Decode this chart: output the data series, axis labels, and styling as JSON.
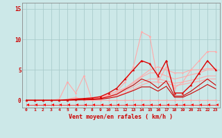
{
  "xlabel": "Vent moyen/en rafales ( km/h )",
  "x_ticks": [
    0,
    1,
    2,
    3,
    4,
    5,
    6,
    7,
    8,
    9,
    10,
    11,
    12,
    13,
    14,
    15,
    16,
    17,
    18,
    19,
    20,
    21,
    22,
    23
  ],
  "xlim": [
    -0.5,
    23.5
  ],
  "ylim": [
    -1.2,
    16
  ],
  "y_ticks": [
    0,
    5,
    10,
    15
  ],
  "background_color": "#cce8e8",
  "grid_color": "#aacccc",
  "series": [
    {
      "x": [
        0,
        1,
        2,
        3,
        4,
        5,
        6,
        7,
        8,
        9,
        10,
        11,
        12,
        13,
        14,
        15,
        16,
        17,
        18,
        19,
        20,
        21,
        22,
        23
      ],
      "y": [
        0,
        0,
        0,
        0,
        0,
        0.2,
        0.5,
        0,
        0,
        0,
        1.0,
        1.5,
        3.0,
        5.5,
        11.2,
        10.5,
        3.0,
        5.5,
        2.0,
        3.0,
        5.0,
        6.5,
        8.0,
        8.0
      ],
      "color": "#ffaaaa",
      "lw": 0.8,
      "marker": "o",
      "ms": 2.0
    },
    {
      "x": [
        0,
        1,
        2,
        3,
        4,
        5,
        6,
        7,
        8,
        9,
        10,
        11,
        12,
        13,
        14,
        15,
        16,
        17,
        18,
        19,
        20,
        21,
        22,
        23
      ],
      "y": [
        0,
        0,
        0,
        0,
        0.2,
        3.0,
        1.2,
        4.0,
        0,
        0,
        0,
        0,
        0,
        0,
        0,
        0,
        0,
        0,
        0,
        0,
        0,
        0,
        0,
        0
      ],
      "color": "#ffaaaa",
      "lw": 0.8,
      "marker": "o",
      "ms": 2.0
    },
    {
      "x": [
        0,
        1,
        2,
        3,
        4,
        5,
        6,
        7,
        8,
        9,
        10,
        11,
        12,
        13,
        14,
        15,
        16,
        17,
        18,
        19,
        20,
        21,
        22,
        23
      ],
      "y": [
        0,
        0,
        0,
        0,
        0,
        0.1,
        0.2,
        0.3,
        0.3,
        0.5,
        1.0,
        1.5,
        2.0,
        3.0,
        4.0,
        5.0,
        5.5,
        5.0,
        4.5,
        4.5,
        5.0,
        5.0,
        5.2,
        5.2
      ],
      "color": "#ffaaaa",
      "lw": 0.8,
      "marker": "o",
      "ms": 1.5
    },
    {
      "x": [
        0,
        1,
        2,
        3,
        4,
        5,
        6,
        7,
        8,
        9,
        10,
        11,
        12,
        13,
        14,
        15,
        16,
        17,
        18,
        19,
        20,
        21,
        22,
        23
      ],
      "y": [
        0,
        0,
        0,
        0,
        0,
        0.08,
        0.15,
        0.2,
        0.25,
        0.4,
        0.8,
        1.2,
        2.0,
        2.8,
        3.8,
        4.5,
        4.5,
        4.0,
        3.5,
        3.8,
        4.2,
        4.5,
        5.0,
        5.0
      ],
      "color": "#ffaaaa",
      "lw": 0.8,
      "marker": null,
      "ms": 0
    },
    {
      "x": [
        0,
        1,
        2,
        3,
        4,
        5,
        6,
        7,
        8,
        9,
        10,
        11,
        12,
        13,
        14,
        15,
        16,
        17,
        18,
        19,
        20,
        21,
        22,
        23
      ],
      "y": [
        0,
        0,
        0,
        0,
        0,
        0.06,
        0.12,
        0.18,
        0.22,
        0.35,
        0.65,
        1.0,
        1.6,
        2.2,
        3.0,
        3.5,
        3.5,
        3.2,
        2.8,
        3.0,
        3.3,
        3.6,
        4.0,
        4.0
      ],
      "color": "#ffaaaa",
      "lw": 0.8,
      "marker": null,
      "ms": 0
    },
    {
      "x": [
        0,
        1,
        2,
        3,
        4,
        5,
        6,
        7,
        8,
        9,
        10,
        11,
        12,
        13,
        14,
        15,
        16,
        17,
        18,
        19,
        20,
        21,
        22,
        23
      ],
      "y": [
        0,
        0,
        0,
        0,
        0,
        0.04,
        0.08,
        0.12,
        0.16,
        0.25,
        0.5,
        0.75,
        1.2,
        1.8,
        2.5,
        3.0,
        3.0,
        2.8,
        2.4,
        2.6,
        2.9,
        3.1,
        3.5,
        3.5
      ],
      "color": "#ffaaaa",
      "lw": 0.8,
      "marker": null,
      "ms": 0
    },
    {
      "x": [
        0,
        1,
        2,
        3,
        4,
        5,
        6,
        7,
        8,
        9,
        10,
        11,
        12,
        13,
        14,
        15,
        16,
        17,
        18,
        19,
        20,
        21,
        22,
        23
      ],
      "y": [
        0,
        0,
        0,
        0,
        0,
        0.1,
        0.2,
        0.3,
        0.4,
        0.6,
        1.2,
        2.0,
        3.5,
        5.0,
        6.5,
        6.0,
        4.0,
        6.5,
        1.2,
        1.2,
        2.5,
        4.5,
        6.5,
        5.0
      ],
      "color": "#dd0000",
      "lw": 1.0,
      "marker": "^",
      "ms": 2.5
    },
    {
      "x": [
        0,
        1,
        2,
        3,
        4,
        5,
        6,
        7,
        8,
        9,
        10,
        11,
        12,
        13,
        14,
        15,
        16,
        17,
        18,
        19,
        20,
        21,
        22,
        23
      ],
      "y": [
        0,
        0,
        0,
        0,
        0,
        0.05,
        0.1,
        0.15,
        0.2,
        0.3,
        0.6,
        1.0,
        1.8,
        2.5,
        3.5,
        3.0,
        2.0,
        3.2,
        0.7,
        0.7,
        1.5,
        2.5,
        3.5,
        2.5
      ],
      "color": "#cc0000",
      "lw": 0.8,
      "marker": null,
      "ms": 0
    },
    {
      "x": [
        0,
        1,
        2,
        3,
        4,
        5,
        6,
        7,
        8,
        9,
        10,
        11,
        12,
        13,
        14,
        15,
        16,
        17,
        18,
        19,
        20,
        21,
        22,
        23
      ],
      "y": [
        0,
        0,
        0,
        0,
        0,
        0.03,
        0.06,
        0.09,
        0.12,
        0.18,
        0.36,
        0.6,
        1.1,
        1.6,
        2.2,
        2.2,
        1.5,
        2.3,
        0.5,
        0.5,
        1.1,
        1.8,
        2.6,
        1.9
      ],
      "color": "#cc0000",
      "lw": 0.8,
      "marker": null,
      "ms": 0
    },
    {
      "x": [
        0,
        1,
        2,
        3,
        4,
        5,
        6,
        7,
        8,
        9,
        10,
        11,
        12,
        13,
        14,
        15,
        16,
        17,
        18,
        19,
        20,
        21,
        22,
        23
      ],
      "y": [
        -0.7,
        -0.7,
        -0.7,
        -0.7,
        -0.7,
        -0.7,
        -0.7,
        -0.7,
        -0.7,
        -0.7,
        -0.7,
        -0.7,
        -0.7,
        -0.7,
        -0.7,
        -0.7,
        -0.7,
        -0.7,
        -0.7,
        -0.7,
        -0.7,
        -0.7,
        -0.7,
        -0.7
      ],
      "color": "#ff0000",
      "lw": 0.5,
      "marker": 4,
      "ms": 3.5
    }
  ]
}
